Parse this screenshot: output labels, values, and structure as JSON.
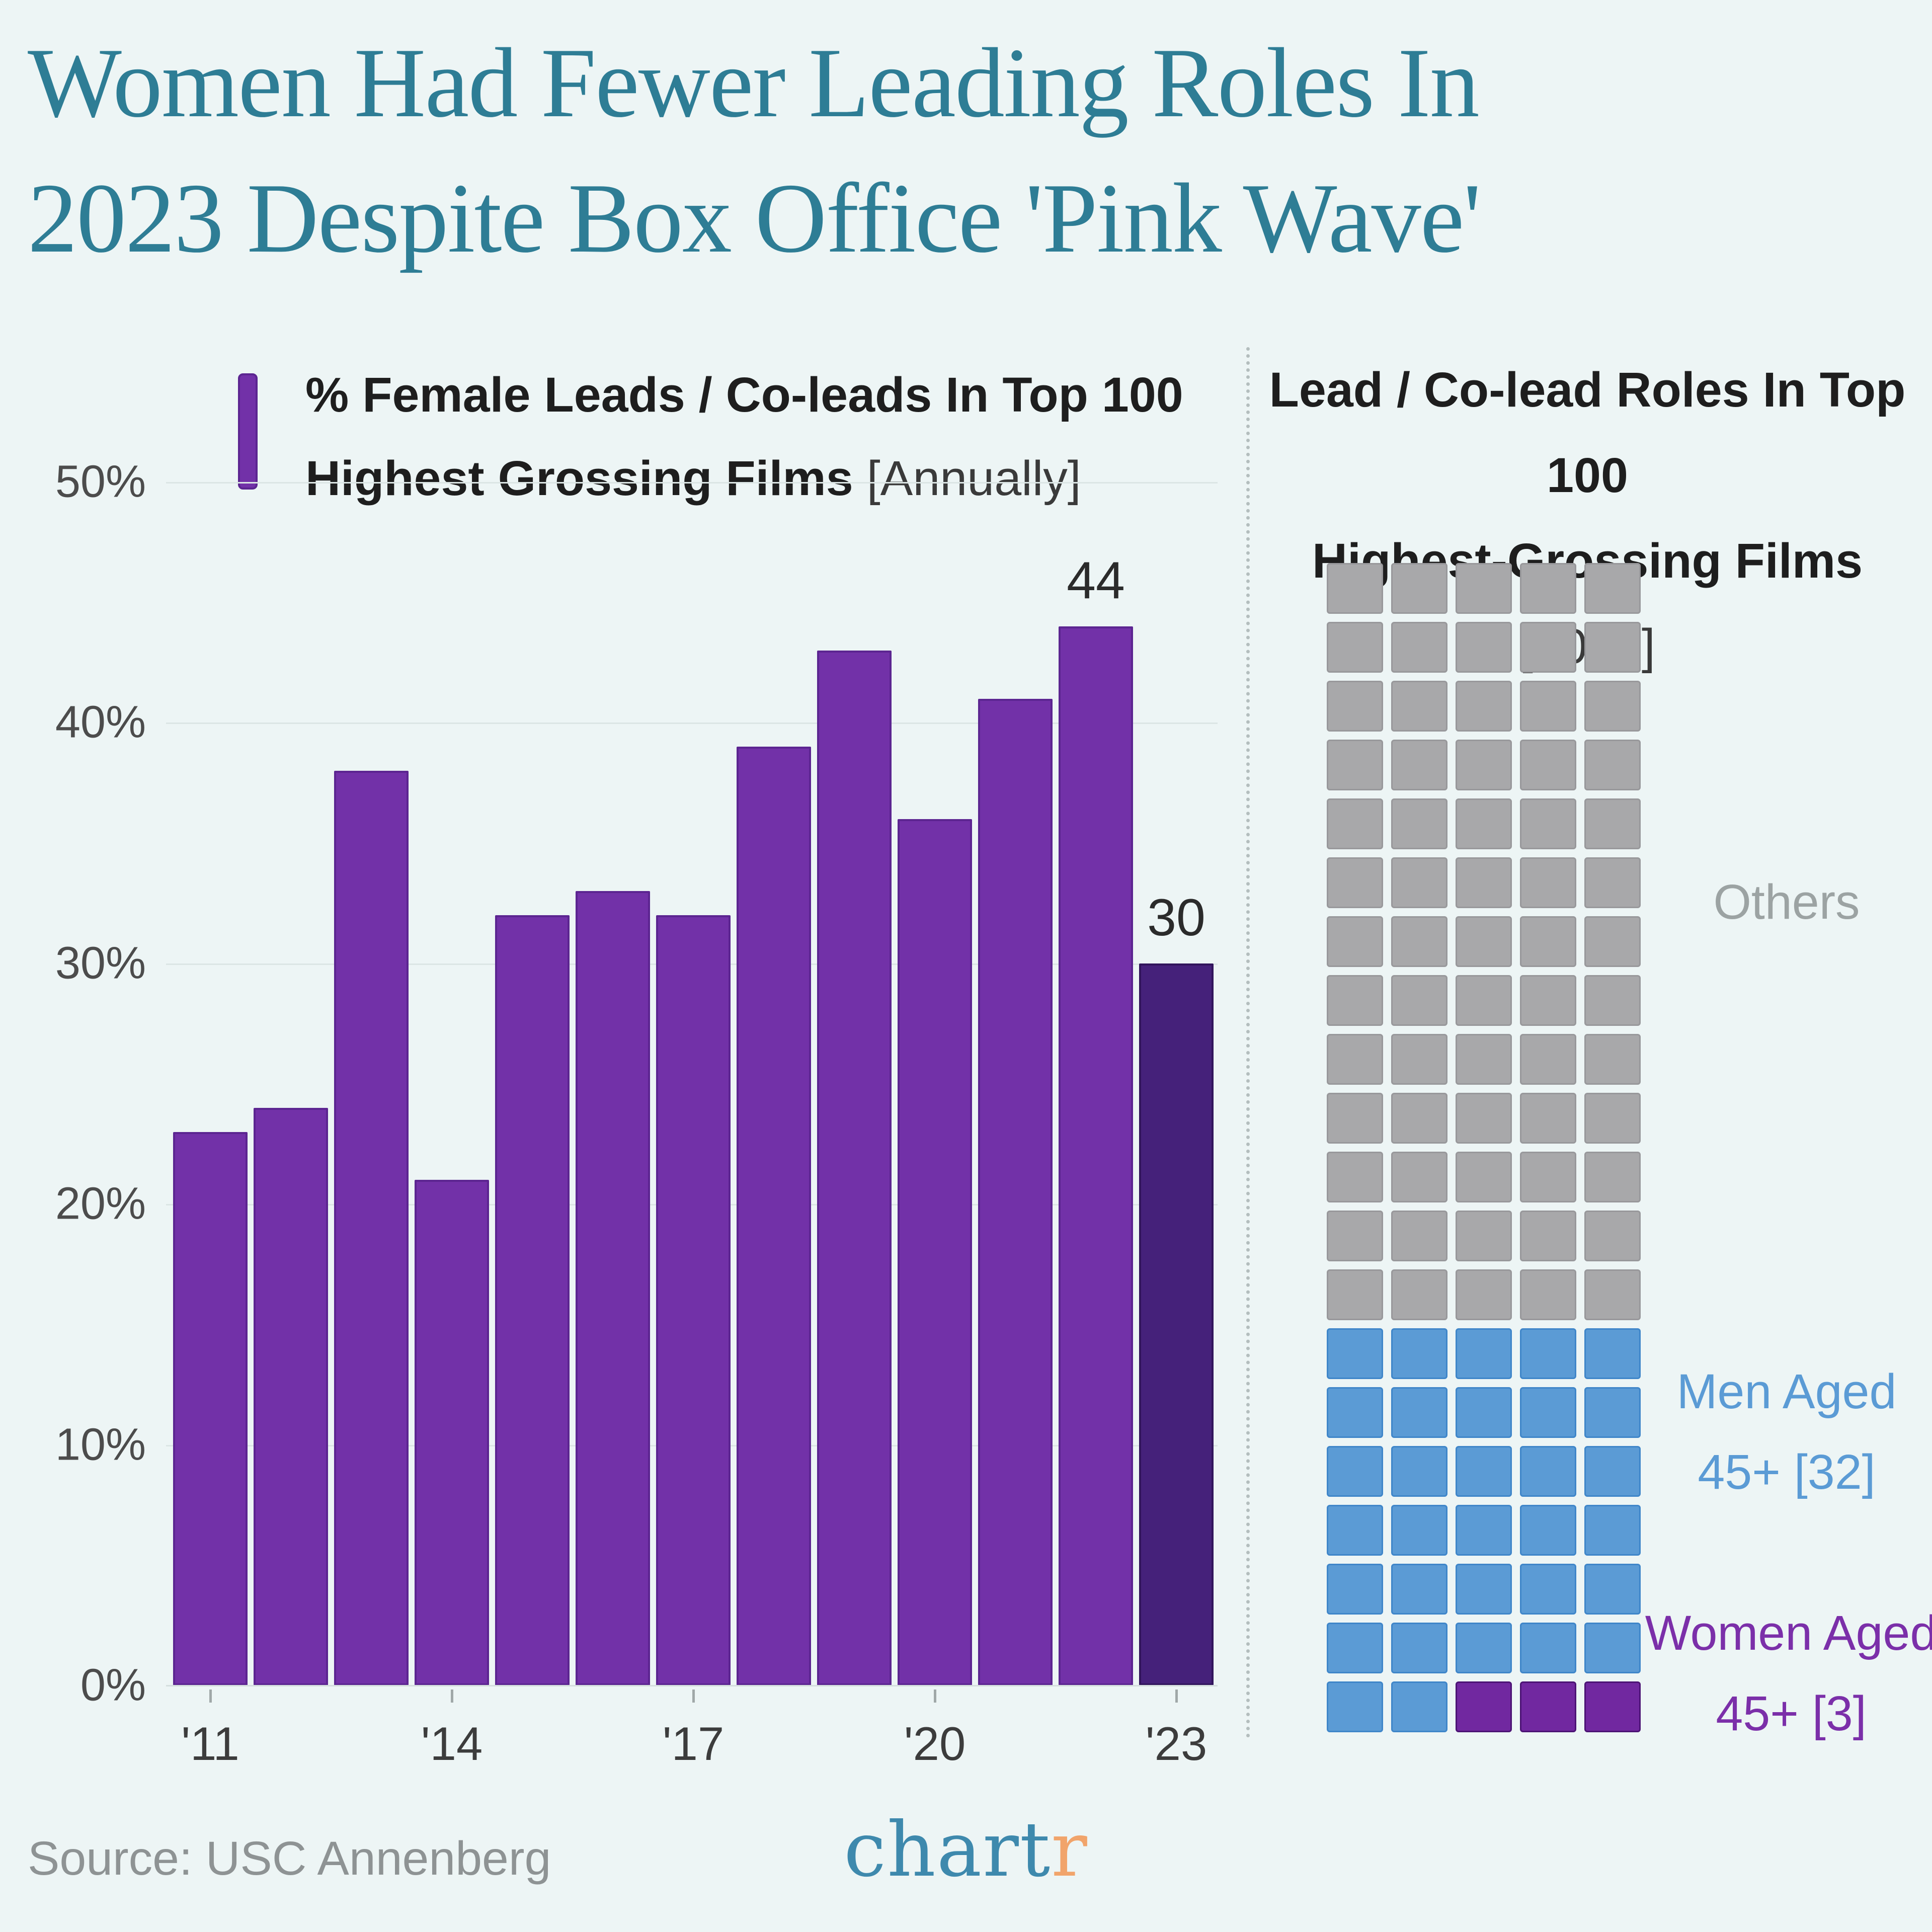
{
  "page": {
    "background": "#EDF5F5",
    "title_lines": [
      "Women Had Fewer Leading Roles In",
      "2023 Despite Box Office 'Pink Wave'"
    ],
    "title_color": "#2E7D95",
    "source": "Source: USC Annenberg",
    "logo": {
      "main": "chart",
      "accent": "r",
      "main_color": "#3E89AD",
      "accent_color": "#F1A46B"
    }
  },
  "left_chart": {
    "legend": {
      "swatch_color": "#7231A8",
      "line1": "% Female Leads / Co-leads In Top 100",
      "line2_main": "Highest Grossing Films ",
      "line2_bracket": "[Annually]"
    },
    "yticks": [
      "0%",
      "10%",
      "20%",
      "30%",
      "40%",
      "50%"
    ],
    "xticks": [
      {
        "label": "'11",
        "index": 0
      },
      {
        "label": "'14",
        "index": 3
      },
      {
        "label": "'17",
        "index": 6
      },
      {
        "label": "'20",
        "index": 9
      },
      {
        "label": "'23",
        "index": 12
      }
    ]
  },
  "right_chart": {
    "title_line1": "Lead / Co-lead Roles In Top 100",
    "title_line2_main": "Highest-Grossing Films ",
    "title_line2_bracket": "[2023]",
    "labels": {
      "others": {
        "text": "Others",
        "color": "#9CA3A3"
      },
      "men": {
        "line1": "Men Aged",
        "line2": "45+ [32]",
        "color": "#5B9BD5"
      },
      "women": {
        "line1": "Women Aged",
        "line2": "45+ [3]",
        "color": "#7B2FA9"
      }
    }
  },
  "chart_data": [
    {
      "type": "bar",
      "title": "% Female Leads / Co-leads In Top 100 Highest Grossing Films [Annually]",
      "categories": [
        "2011",
        "2012",
        "2013",
        "2014",
        "2015",
        "2016",
        "2017",
        "2018",
        "2019",
        "2020",
        "2021",
        "2022",
        "2023"
      ],
      "values": [
        23,
        24,
        38,
        21,
        32,
        33,
        32,
        39,
        43,
        36,
        41,
        44,
        30
      ],
      "xtick_labels_shown": [
        "'11",
        "'14",
        "'17",
        "'20",
        "'23"
      ],
      "xlabel": "",
      "ylabel": "",
      "ylim": [
        0,
        50
      ],
      "yticks_pct": [
        0,
        10,
        20,
        30,
        40,
        50
      ],
      "grid": "horizontal-faint",
      "bar_color": "#7231A8",
      "bar_border_color": "#5C2591",
      "highlight_index": 12,
      "highlight_color": "#45217A",
      "highlight_border_color": "#32155C",
      "labeled_indices": [
        11,
        12
      ],
      "legend_position": "top-left"
    },
    {
      "type": "pie",
      "variant": "waffle 5x20 unit grid (100 units, row-major from top-left)",
      "title": "Lead / Co-lead Roles In Top 100 Highest-Grossing Films [2023]",
      "categories": [
        "Others",
        "Men Aged 45+",
        "Women Aged 45+"
      ],
      "values": [
        65,
        32,
        3
      ],
      "total": 100,
      "colors": [
        "#A8A8AA",
        "#5B9BD5",
        "#7128A0"
      ],
      "cell_border_colors": [
        "#98989B",
        "#3F86C9",
        "#4C1375"
      ],
      "legend_position": "right"
    }
  ]
}
